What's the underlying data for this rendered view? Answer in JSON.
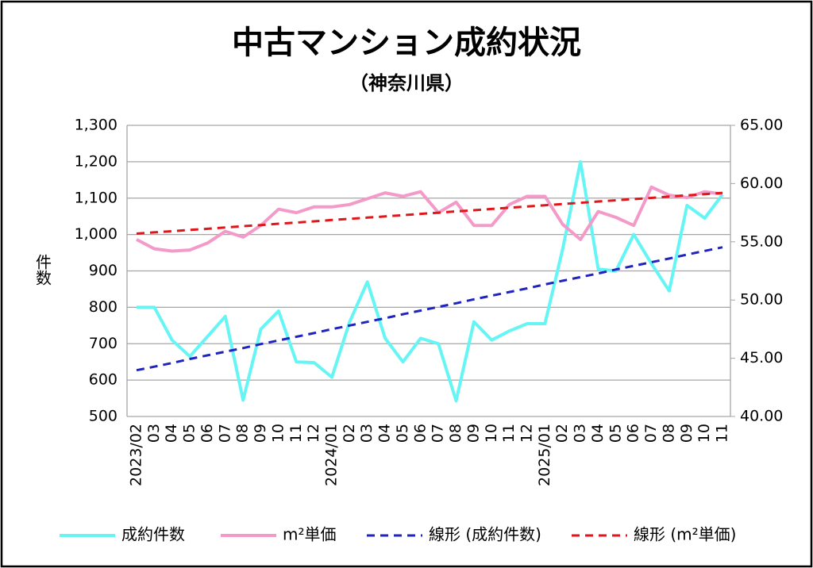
{
  "chart_data": {
    "type": "line",
    "title": "中古マンション成約状況",
    "subtitle": "（神奈川県）",
    "ylabel": "件数",
    "categories": [
      "2023/02",
      "03",
      "04",
      "05",
      "06",
      "07",
      "08",
      "09",
      "10",
      "11",
      "12",
      "2024/01",
      "02",
      "03",
      "04",
      "05",
      "06",
      "07",
      "08",
      "09",
      "10",
      "11",
      "12",
      "2025/01",
      "02",
      "03",
      "04",
      "05",
      "06",
      "07",
      "08",
      "09",
      "10",
      "11"
    ],
    "ylim": [
      500,
      1300
    ],
    "yticks": [
      500,
      600,
      700,
      800,
      900,
      {
        "value": 1000,
        "label": "1,000"
      },
      {
        "value": 1100,
        "label": "1,100"
      },
      {
        "value": 1200,
        "label": "1,200"
      },
      {
        "value": 1300,
        "label": "1,300"
      }
    ],
    "y2lim": [
      40,
      65
    ],
    "y2ticks": [
      {
        "value": 40,
        "label": "40.00"
      },
      {
        "value": 45,
        "label": "45.00"
      },
      {
        "value": 50,
        "label": "50.00"
      },
      {
        "value": 55,
        "label": "55.00"
      },
      {
        "value": 60,
        "label": "60.00"
      },
      {
        "value": 65,
        "label": "65.00"
      }
    ],
    "grid": true,
    "legend": "bottom",
    "series": [
      {
        "name": "成約件数",
        "color": "#66f5f5",
        "dash": "solid",
        "values": [
          800,
          800,
          710,
          665,
          720,
          775,
          545,
          740,
          790,
          650,
          648,
          608,
          760,
          870,
          715,
          650,
          715,
          700,
          543,
          760,
          710,
          735,
          755,
          755,
          960,
          1200,
          905,
          900,
          1000,
          920,
          845,
          1080,
          1045,
          1110
        ]
      },
      {
        "name": "m²単価",
        "color": "#f49ac8",
        "dash": "solid",
        "axis": "y2",
        "values": [
          55.2,
          54.4,
          54.2,
          54.3,
          54.9,
          55.9,
          55.4,
          56.4,
          57.8,
          57.5,
          58.0,
          58.0,
          58.2,
          58.7,
          59.2,
          58.9,
          59.3,
          57.5,
          58.4,
          56.4,
          56.4,
          58.2,
          58.9,
          58.9,
          56.5,
          55.2,
          57.6,
          57.1,
          56.4,
          59.7,
          59.0,
          58.8,
          59.3,
          59.1
        ]
      },
      {
        "name": "線形 (成約件数)",
        "color": "#1f24c0",
        "dash": "dashed",
        "values": [
          627,
          637,
          647,
          658,
          668,
          678,
          688,
          699,
          709,
          719,
          729,
          740,
          750,
          760,
          770,
          781,
          791,
          801,
          811,
          822,
          832,
          842,
          852,
          863,
          873,
          883,
          893,
          904,
          914,
          924,
          934,
          945,
          955,
          965
        ]
      },
      {
        "name": "線形 (m²単価)",
        "color": "#e0161b",
        "dash": "dashed",
        "axis": "y2",
        "values": [
          55.7,
          55.81,
          55.91,
          56.02,
          56.12,
          56.23,
          56.34,
          56.44,
          56.55,
          56.65,
          56.76,
          56.87,
          56.97,
          57.08,
          57.18,
          57.29,
          57.4,
          57.5,
          57.61,
          57.71,
          57.82,
          57.93,
          58.03,
          58.14,
          58.24,
          58.35,
          58.46,
          58.56,
          58.67,
          58.77,
          58.88,
          58.99,
          59.09,
          59.2
        ]
      }
    ]
  }
}
